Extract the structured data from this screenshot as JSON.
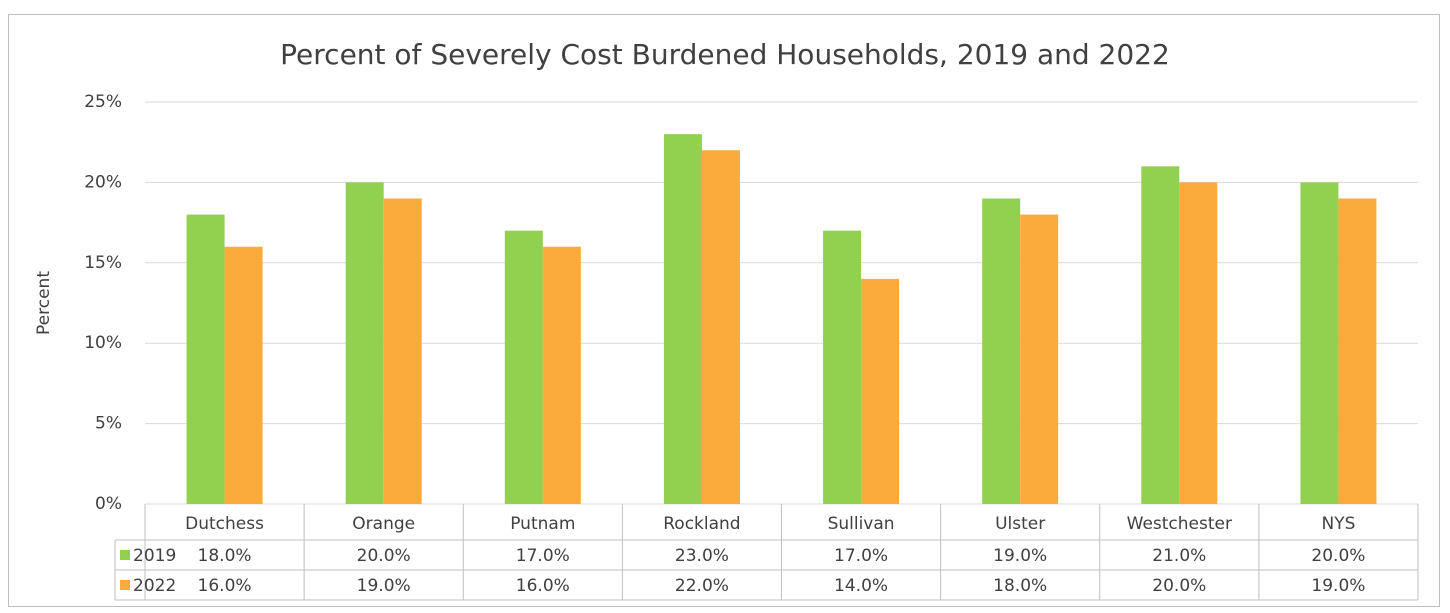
{
  "chart_data": {
    "type": "bar",
    "title": "Percent of Severely Cost Burdened Households, 2019 and 2022",
    "y_label": "Percent",
    "categories": [
      "Dutchess",
      "Orange",
      "Putnam",
      "Rockland",
      "Sullivan",
      "Ulster",
      "Westchester",
      "NYS"
    ],
    "series": [
      {
        "name": "2019",
        "color": "#92d050",
        "values": [
          18,
          20,
          17,
          23,
          17,
          19,
          21,
          20
        ],
        "value_labels": [
          "18.0%",
          "20.0%",
          "17.0%",
          "23.0%",
          "17.0%",
          "19.0%",
          "21.0%",
          "20.0%"
        ]
      },
      {
        "name": "2022",
        "color": "#fbab3c",
        "values": [
          16,
          19,
          16,
          22,
          14,
          18,
          20,
          19
        ],
        "value_labels": [
          "16.0%",
          "19.0%",
          "16.0%",
          "22.0%",
          "14.0%",
          "18.0%",
          "20.0%",
          "19.0%"
        ]
      }
    ],
    "ylim": [
      0,
      25
    ],
    "yticks": [
      {
        "value": 0,
        "label": "0%"
      },
      {
        "value": 5,
        "label": "5%"
      },
      {
        "value": 10,
        "label": "10%"
      },
      {
        "value": 15,
        "label": "15%"
      },
      {
        "value": 20,
        "label": "20%"
      },
      {
        "value": 25,
        "label": "25%"
      }
    ],
    "grid": true
  }
}
